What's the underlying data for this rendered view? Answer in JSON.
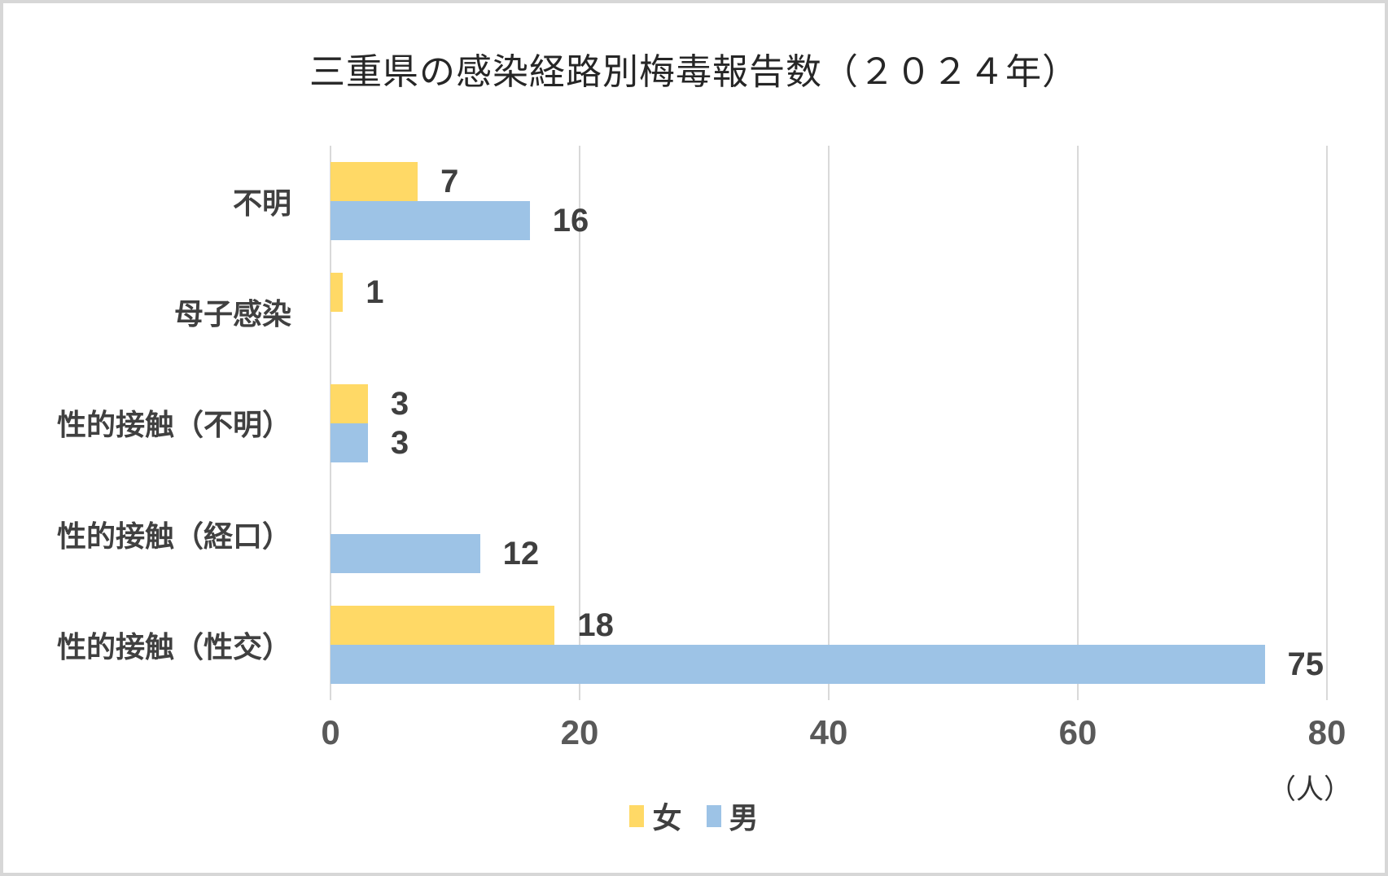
{
  "chart_data": {
    "type": "bar",
    "orientation": "horizontal",
    "title": "三重県の感染経路別梅毒報告数（２０２４年）",
    "unit": "（人）",
    "categories": [
      "不明",
      "母子感染",
      "性的接触（不明）",
      "性的接触（経口）",
      "性的接触（性交）"
    ],
    "series": [
      {
        "name": "女",
        "color": "#FFD966",
        "values": [
          7,
          1,
          3,
          0,
          18
        ]
      },
      {
        "name": "男",
        "color": "#9DC3E6",
        "values": [
          16,
          0,
          3,
          12,
          75
        ]
      }
    ],
    "xlim": [
      0,
      80
    ],
    "x_ticks": [
      0,
      20,
      40,
      60,
      80
    ],
    "grid": "vertical-only",
    "gridline_color": "#D9D9D9",
    "legend_position": "bottom",
    "value_labels_shown_for_zero": false
  },
  "colors": {
    "female": "#FFD966",
    "male": "#9DC3E6",
    "title_text": "#262626",
    "label_text": "#404040",
    "axis_text": "#595959",
    "gridline": "#D9D9D9",
    "frame_border": "#D7D7D7",
    "background": "#FFFFFF"
  }
}
